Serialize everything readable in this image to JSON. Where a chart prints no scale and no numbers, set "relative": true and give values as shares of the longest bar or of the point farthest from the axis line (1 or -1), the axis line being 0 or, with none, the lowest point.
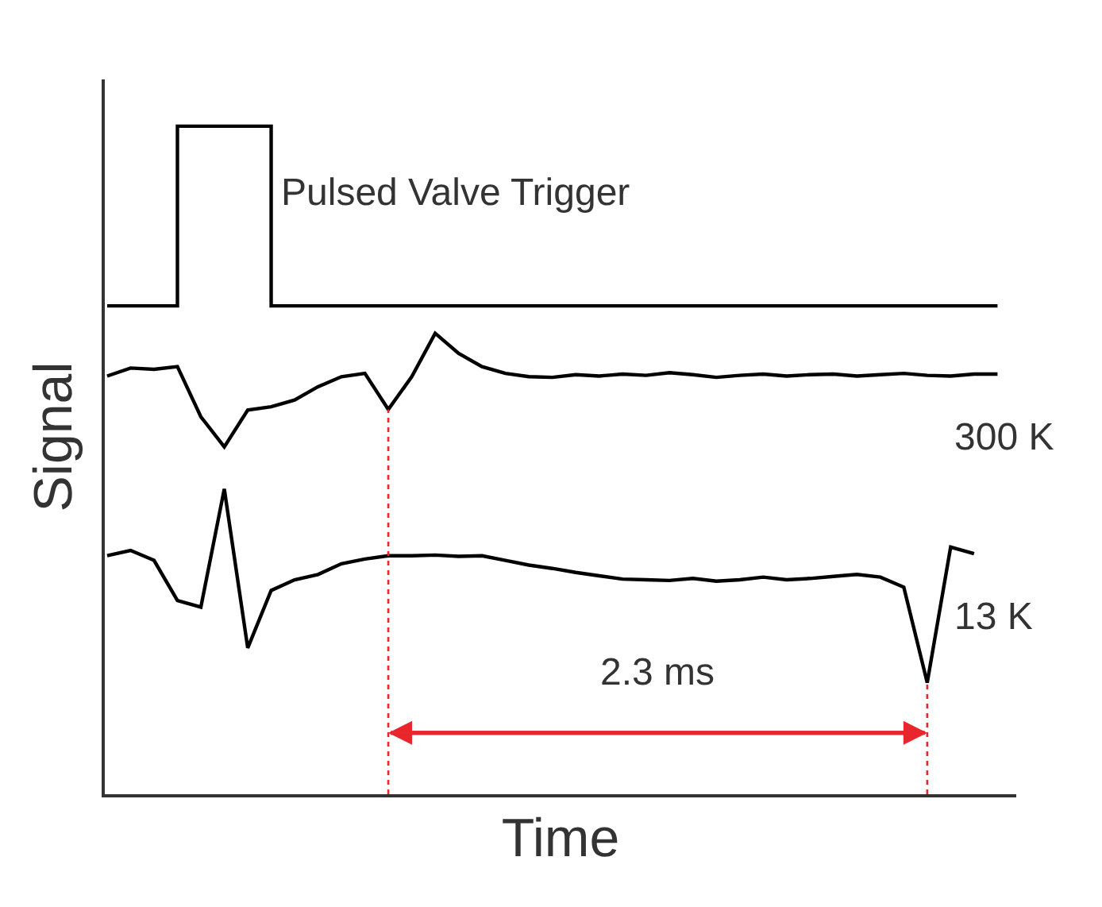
{
  "chart_data": {
    "type": "line",
    "relative": true,
    "xlabel": "Time",
    "ylabel": "Signal",
    "tick_labels": false,
    "categories": [
      null,
      null,
      null,
      null,
      null,
      null,
      null,
      null,
      null,
      null,
      null,
      null,
      null,
      null,
      null,
      null,
      null,
      null,
      null,
      null,
      null,
      null,
      null,
      null,
      null,
      null,
      null,
      null,
      null,
      null,
      null,
      null,
      null,
      null,
      null,
      null,
      null,
      null,
      null
    ],
    "series": [
      {
        "name": "Pulsed Valve Trigger",
        "type": "step",
        "color": "#000000",
        "values": [
          0.731,
          0.731,
          0.731,
          1.0,
          1.0,
          1.0,
          1.0,
          0.731,
          0.731,
          0.731,
          0.731,
          0.731,
          0.731,
          0.731,
          0.731,
          0.731,
          0.731,
          0.731,
          0.731,
          0.731,
          0.731,
          0.731,
          0.731,
          0.731,
          0.731,
          0.731,
          0.731,
          0.731,
          0.731,
          0.731,
          0.731,
          0.731,
          0.731,
          0.731,
          0.731,
          0.731,
          0.731,
          0.731,
          0.731
        ]
      },
      {
        "name": "300 K",
        "color": "#000000",
        "values": [
          0.626,
          0.638,
          0.636,
          0.64,
          0.565,
          0.52,
          0.575,
          0.58,
          0.59,
          0.61,
          0.625,
          0.63,
          0.576,
          0.625,
          0.69,
          0.66,
          0.64,
          0.63,
          0.625,
          0.624,
          0.628,
          0.626,
          0.629,
          0.627,
          0.631,
          0.628,
          0.624,
          0.627,
          0.629,
          0.626,
          0.628,
          0.629,
          0.626,
          0.628,
          0.63,
          0.627,
          0.626,
          0.629,
          0.629
        ]
      },
      {
        "name": "13 K",
        "color": "#000000",
        "values": [
          0.357,
          0.365,
          0.35,
          0.29,
          0.28,
          0.457,
          0.219,
          0.305,
          0.321,
          0.329,
          0.345,
          0.352,
          0.357,
          0.357,
          0.358,
          0.356,
          0.357,
          0.35,
          0.343,
          0.338,
          0.332,
          0.327,
          0.322,
          0.321,
          0.32,
          0.323,
          0.319,
          0.321,
          0.325,
          0.321,
          0.323,
          0.326,
          0.329,
          0.325,
          0.31,
          0.167,
          0.37,
          0.36,
          null
        ]
      }
    ],
    "annotations": [
      "2.3 ms"
    ]
  }
}
